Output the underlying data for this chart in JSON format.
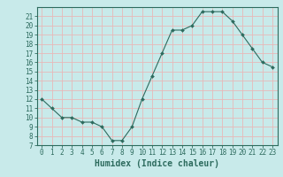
{
  "x": [
    0,
    1,
    2,
    3,
    4,
    5,
    6,
    7,
    8,
    9,
    10,
    11,
    12,
    13,
    14,
    15,
    16,
    17,
    18,
    19,
    20,
    21,
    22,
    23
  ],
  "y": [
    12,
    11,
    10,
    10,
    9.5,
    9.5,
    9,
    7.5,
    7.5,
    9,
    12,
    14.5,
    17,
    19.5,
    19.5,
    20,
    21.5,
    21.5,
    21.5,
    20.5,
    19,
    17.5,
    16,
    15.5
  ],
  "line_color": "#2d6b5e",
  "marker": "D",
  "marker_size": 2.0,
  "bg_color": "#c8eaea",
  "grid_color": "#e8b8b8",
  "xlabel": "Humidex (Indice chaleur)",
  "ylim": [
    7,
    22
  ],
  "xlim": [
    -0.5,
    23.5
  ],
  "yticks": [
    7,
    8,
    9,
    10,
    11,
    12,
    13,
    14,
    15,
    16,
    17,
    18,
    19,
    20,
    21
  ],
  "xticks": [
    0,
    1,
    2,
    3,
    4,
    5,
    6,
    7,
    8,
    9,
    10,
    11,
    12,
    13,
    14,
    15,
    16,
    17,
    18,
    19,
    20,
    21,
    22,
    23
  ],
  "tick_label_fontsize": 5.5,
  "xlabel_fontsize": 7,
  "axis_color": "#2d6b5e"
}
